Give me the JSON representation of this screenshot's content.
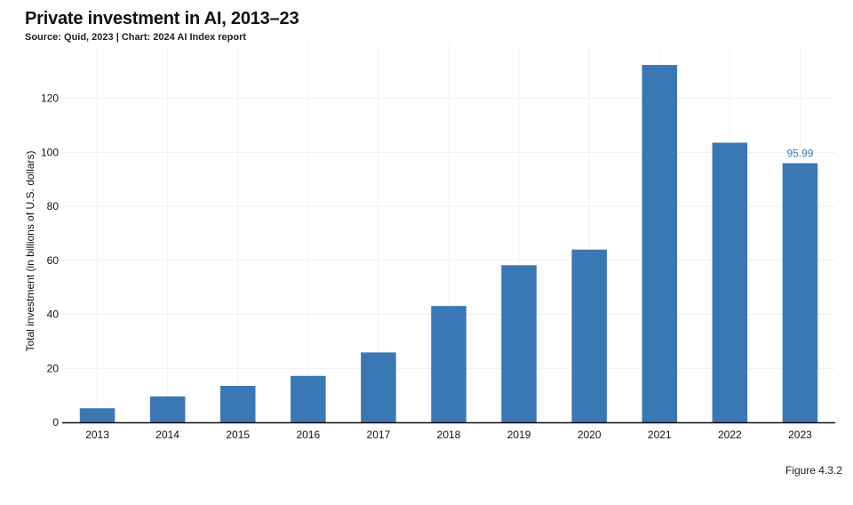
{
  "header": {
    "title": "Private investment in AI, 2013–23",
    "subtitle": "Source: Quid, 2023 | Chart: 2024 AI Index report"
  },
  "footer": {
    "figure_label": "Figure 4.3.2"
  },
  "chart_data": {
    "type": "bar",
    "title": "Private investment in AI, 2013–23",
    "subtitle": "Source: Quid, 2023 | Chart: 2024 AI Index report",
    "xlabel": "",
    "ylabel": "Total investment (in billions of U.S. dollars)",
    "categories": [
      "2013",
      "2014",
      "2015",
      "2016",
      "2017",
      "2018",
      "2019",
      "2020",
      "2021",
      "2022",
      "2023"
    ],
    "values": [
      5.2,
      9.6,
      13.5,
      17.2,
      25.9,
      43.1,
      58.2,
      64.0,
      132.4,
      103.6,
      95.99
    ],
    "ylim": [
      0,
      140
    ],
    "yticks": [
      0,
      20,
      40,
      60,
      80,
      100,
      120
    ],
    "data_labels": [
      {
        "category": "2023",
        "text": "95.99"
      }
    ],
    "bar_color": "#3a78b5",
    "label_color": "#3a78b5",
    "grid": true,
    "legend": "none"
  }
}
